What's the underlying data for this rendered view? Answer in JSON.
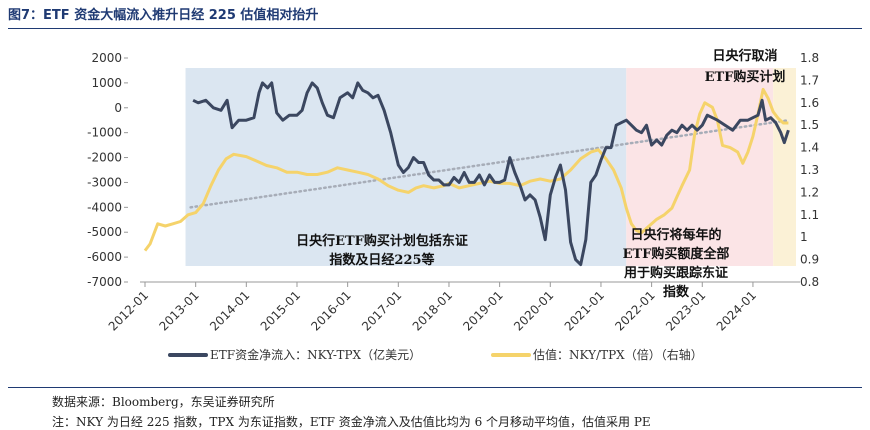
{
  "figure": {
    "title": "图7：ETF 资金大幅流入推升日经 225 估值相对抬升",
    "source": "数据来源：Bloomberg，东吴证券研究所",
    "note": "注：NKY 为日经 225 指数，TPX 为东证指数，ETF 资金净流入及估值比均为 6 个月移动平均值，估值采用 PE"
  },
  "colors": {
    "title": "#1f3a73",
    "flow": "#3b4760",
    "valuation": "#f5d36b",
    "trend": "#a7adb8",
    "band_blue": "#dbe6f1",
    "band_pink": "#fbe4e6",
    "band_yellow": "#fbf1d6"
  },
  "chart_data": {
    "type": "line",
    "x_ticks": [
      "2012-01",
      "2013-01",
      "2014-01",
      "2015-01",
      "2016-01",
      "2017-01",
      "2018-01",
      "2019-01",
      "2020-01",
      "2021-01",
      "2022-01",
      "2023-01",
      "2024-01"
    ],
    "y_left": {
      "ylim": [
        -7000,
        2000
      ],
      "ticks": [
        "2000",
        "1000",
        "0",
        "-1000",
        "-2000",
        "-3000",
        "-4000",
        "-5000",
        "-6000",
        "-7000"
      ]
    },
    "y_right": {
      "ylim": [
        0.8,
        1.8
      ],
      "ticks": [
        "1.8",
        "1.7",
        "1.6",
        "1.5",
        "1.4",
        "1.3",
        "1.2",
        "1.1",
        "1",
        "0.9",
        "0.8"
      ]
    },
    "series": [
      {
        "name": "ETF资金净流入：NKY-TPX（亿美元）",
        "axis": "left",
        "points": [
          [
            2012.95,
            300
          ],
          [
            2013.05,
            200
          ],
          [
            2013.2,
            300
          ],
          [
            2013.35,
            0
          ],
          [
            2013.5,
            -100
          ],
          [
            2013.62,
            300
          ],
          [
            2013.72,
            -800
          ],
          [
            2013.85,
            -500
          ],
          [
            2014.0,
            -500
          ],
          [
            2014.15,
            -400
          ],
          [
            2014.25,
            600
          ],
          [
            2014.32,
            1000
          ],
          [
            2014.42,
            800
          ],
          [
            2014.5,
            1000
          ],
          [
            2014.6,
            -200
          ],
          [
            2014.72,
            -500
          ],
          [
            2014.85,
            -300
          ],
          [
            2015.0,
            -300
          ],
          [
            2015.1,
            -100
          ],
          [
            2015.2,
            600
          ],
          [
            2015.3,
            1000
          ],
          [
            2015.4,
            800
          ],
          [
            2015.5,
            200
          ],
          [
            2015.6,
            -300
          ],
          [
            2015.72,
            -400
          ],
          [
            2015.85,
            400
          ],
          [
            2016.0,
            600
          ],
          [
            2016.1,
            400
          ],
          [
            2016.2,
            1000
          ],
          [
            2016.3,
            700
          ],
          [
            2016.4,
            600
          ],
          [
            2016.5,
            400
          ],
          [
            2016.6,
            500
          ],
          [
            2016.72,
            -100
          ],
          [
            2016.85,
            -1000
          ],
          [
            2017.0,
            -2300
          ],
          [
            2017.1,
            -2600
          ],
          [
            2017.2,
            -2400
          ],
          [
            2017.3,
            -2000
          ],
          [
            2017.4,
            -2200
          ],
          [
            2017.5,
            -2200
          ],
          [
            2017.6,
            -2700
          ],
          [
            2017.7,
            -2900
          ],
          [
            2017.8,
            -2900
          ],
          [
            2017.9,
            -3100
          ],
          [
            2018.0,
            -3100
          ],
          [
            2018.1,
            -2800
          ],
          [
            2018.2,
            -3000
          ],
          [
            2018.3,
            -2600
          ],
          [
            2018.4,
            -3000
          ],
          [
            2018.5,
            -3000
          ],
          [
            2018.6,
            -2700
          ],
          [
            2018.7,
            -3100
          ],
          [
            2018.8,
            -2700
          ],
          [
            2018.9,
            -3000
          ],
          [
            2019.0,
            -3000
          ],
          [
            2019.1,
            -2900
          ],
          [
            2019.2,
            -2000
          ],
          [
            2019.3,
            -2600
          ],
          [
            2019.4,
            -3100
          ],
          [
            2019.5,
            -3700
          ],
          [
            2019.6,
            -3500
          ],
          [
            2019.7,
            -3700
          ],
          [
            2019.8,
            -4400
          ],
          [
            2019.9,
            -5300
          ],
          [
            2020.0,
            -3500
          ],
          [
            2020.1,
            -2800
          ],
          [
            2020.2,
            -2300
          ],
          [
            2020.3,
            -3300
          ],
          [
            2020.4,
            -5400
          ],
          [
            2020.5,
            -6100
          ],
          [
            2020.6,
            -6300
          ],
          [
            2020.7,
            -5300
          ],
          [
            2020.8,
            -3000
          ],
          [
            2020.9,
            -2700
          ],
          [
            2021.0,
            -2100
          ],
          [
            2021.1,
            -1600
          ],
          [
            2021.2,
            -1600
          ],
          [
            2021.3,
            -700
          ],
          [
            2021.4,
            -600
          ],
          [
            2021.5,
            -500
          ],
          [
            2021.6,
            -700
          ],
          [
            2021.7,
            -900
          ],
          [
            2021.8,
            -1000
          ],
          [
            2021.9,
            -700
          ],
          [
            2022.0,
            -1500
          ],
          [
            2022.1,
            -1300
          ],
          [
            2022.2,
            -1500
          ],
          [
            2022.3,
            -1100
          ],
          [
            2022.4,
            -900
          ],
          [
            2022.5,
            -1000
          ],
          [
            2022.6,
            -700
          ],
          [
            2022.7,
            -900
          ],
          [
            2022.8,
            -700
          ],
          [
            2022.9,
            -900
          ],
          [
            2023.0,
            -700
          ],
          [
            2023.1,
            -300
          ],
          [
            2023.2,
            -400
          ],
          [
            2023.3,
            -500
          ],
          [
            2023.45,
            -700
          ],
          [
            2023.6,
            -900
          ],
          [
            2023.75,
            -500
          ],
          [
            2023.9,
            -500
          ],
          [
            2024.0,
            -400
          ],
          [
            2024.1,
            -300
          ],
          [
            2024.18,
            300
          ],
          [
            2024.25,
            -500
          ],
          [
            2024.35,
            -400
          ],
          [
            2024.45,
            -600
          ],
          [
            2024.55,
            -1000
          ],
          [
            2024.62,
            -1400
          ],
          [
            2024.7,
            -900
          ]
        ]
      },
      {
        "name": "估值：NKY/TPX（倍）（右轴）",
        "axis": "right",
        "points": [
          [
            2012.0,
            0.94
          ],
          [
            2012.1,
            0.97
          ],
          [
            2012.25,
            1.06
          ],
          [
            2012.4,
            1.05
          ],
          [
            2012.55,
            1.06
          ],
          [
            2012.7,
            1.07
          ],
          [
            2012.85,
            1.1
          ],
          [
            2013.0,
            1.11
          ],
          [
            2013.15,
            1.15
          ],
          [
            2013.3,
            1.23
          ],
          [
            2013.45,
            1.3
          ],
          [
            2013.6,
            1.35
          ],
          [
            2013.75,
            1.37
          ],
          [
            2014.0,
            1.36
          ],
          [
            2014.2,
            1.34
          ],
          [
            2014.4,
            1.32
          ],
          [
            2014.6,
            1.31
          ],
          [
            2014.8,
            1.29
          ],
          [
            2015.0,
            1.29
          ],
          [
            2015.2,
            1.28
          ],
          [
            2015.4,
            1.28
          ],
          [
            2015.6,
            1.29
          ],
          [
            2015.8,
            1.31
          ],
          [
            2016.0,
            1.3
          ],
          [
            2016.2,
            1.29
          ],
          [
            2016.4,
            1.28
          ],
          [
            2016.6,
            1.26
          ],
          [
            2016.8,
            1.23
          ],
          [
            2017.0,
            1.21
          ],
          [
            2017.2,
            1.2
          ],
          [
            2017.35,
            1.22
          ],
          [
            2017.5,
            1.23
          ],
          [
            2017.7,
            1.22
          ],
          [
            2017.9,
            1.23
          ],
          [
            2018.0,
            1.24
          ],
          [
            2018.2,
            1.22
          ],
          [
            2018.4,
            1.23
          ],
          [
            2018.6,
            1.24
          ],
          [
            2018.8,
            1.25
          ],
          [
            2019.0,
            1.24
          ],
          [
            2019.2,
            1.24
          ],
          [
            2019.4,
            1.23
          ],
          [
            2019.6,
            1.25
          ],
          [
            2019.8,
            1.26
          ],
          [
            2020.0,
            1.25
          ],
          [
            2020.2,
            1.26
          ],
          [
            2020.4,
            1.3
          ],
          [
            2020.6,
            1.35
          ],
          [
            2020.8,
            1.38
          ],
          [
            2020.95,
            1.39
          ],
          [
            2021.1,
            1.35
          ],
          [
            2021.25,
            1.3
          ],
          [
            2021.4,
            1.22
          ],
          [
            2021.5,
            1.13
          ],
          [
            2021.6,
            1.06
          ],
          [
            2021.7,
            1.03
          ],
          [
            2021.8,
            1.02
          ],
          [
            2021.95,
            1.05
          ],
          [
            2022.1,
            1.08
          ],
          [
            2022.25,
            1.1
          ],
          [
            2022.4,
            1.13
          ],
          [
            2022.5,
            1.18
          ],
          [
            2022.6,
            1.23
          ],
          [
            2022.75,
            1.3
          ],
          [
            2022.85,
            1.46
          ],
          [
            2022.95,
            1.55
          ],
          [
            2023.05,
            1.6
          ],
          [
            2023.2,
            1.58
          ],
          [
            2023.3,
            1.52
          ],
          [
            2023.4,
            1.41
          ],
          [
            2023.55,
            1.4
          ],
          [
            2023.7,
            1.38
          ],
          [
            2023.8,
            1.33
          ],
          [
            2023.9,
            1.38
          ],
          [
            2024.0,
            1.45
          ],
          [
            2024.1,
            1.55
          ],
          [
            2024.2,
            1.66
          ],
          [
            2024.3,
            1.62
          ],
          [
            2024.4,
            1.56
          ],
          [
            2024.5,
            1.53
          ],
          [
            2024.6,
            1.51
          ],
          [
            2024.7,
            1.51
          ]
        ]
      }
    ],
    "trendline": {
      "style": "dotted",
      "points": [
        [
          2012.9,
          -4000
        ],
        [
          2024.7,
          -500
        ]
      ]
    },
    "shaded_regions": [
      {
        "from": 2012.8,
        "to": 2021.5,
        "color": "band_blue"
      },
      {
        "from": 2021.5,
        "to": 2024.4,
        "color": "band_pink"
      },
      {
        "from": 2024.4,
        "to": 2024.85,
        "color": "band_yellow"
      }
    ],
    "legend_position": "bottom",
    "annotations": [
      {
        "id": "ann1",
        "lines": [
          "日央行ETF购买计划包括东证",
          "指数及日经225等"
        ]
      },
      {
        "id": "ann2",
        "lines": [
          "日央行将每年的",
          "ETF购买额度全部",
          "用于购买跟踪东证",
          "指数"
        ]
      },
      {
        "id": "ann3",
        "lines": [
          "日央行取消",
          "ETF购买计划"
        ]
      }
    ]
  }
}
